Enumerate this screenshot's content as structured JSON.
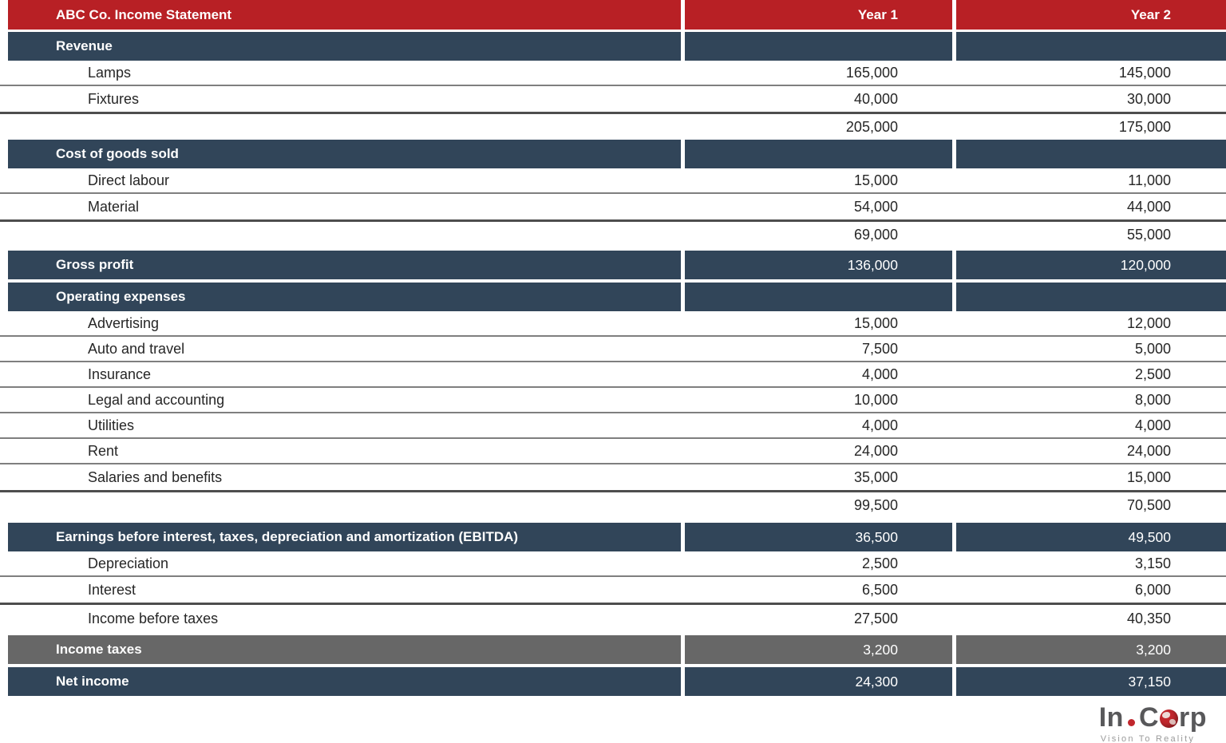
{
  "header": {
    "title": "ABC Co. Income Statement",
    "year1_label": "Year 1",
    "year2_label": "Year 2"
  },
  "rows": [
    {
      "name": "columns-header",
      "type": "header",
      "label": "ABC Co. Income Statement",
      "y1": "Year 1",
      "y2": "Year 2"
    },
    {
      "name": "section-revenue",
      "type": "section",
      "label": "Revenue",
      "gap_before": 3
    },
    {
      "name": "row-lamps",
      "type": "detail",
      "label": "Lamps",
      "y1": "165,000",
      "y2": "145,000",
      "line": "thin"
    },
    {
      "name": "row-fixtures",
      "type": "detail",
      "label": "Fixtures",
      "y1": "40,000",
      "y2": "30,000",
      "line": "thick"
    },
    {
      "name": "row-revenue-total",
      "type": "subtotal",
      "label": "",
      "y1": "205,000",
      "y2": "175,000"
    },
    {
      "name": "section-cost-of-goods-sold",
      "type": "section",
      "label": "Cost of goods sold"
    },
    {
      "name": "row-direct-labour",
      "type": "detail",
      "label": "Direct labour",
      "y1": "15,000",
      "y2": "11,000",
      "line": "thin"
    },
    {
      "name": "row-material",
      "type": "detail",
      "label": "Material",
      "y1": "54,000",
      "y2": "44,000",
      "line": "thick"
    },
    {
      "name": "row-cogs-total",
      "type": "subtotal",
      "label": "",
      "y1": "69,000",
      "y2": "55,000"
    },
    {
      "name": "section-gross-profit",
      "type": "section_values",
      "label": "Gross profit",
      "y1": "136,000",
      "y2": "120,000",
      "gap_before": 4
    },
    {
      "name": "section-operating-expenses",
      "type": "section",
      "label": "Operating expenses",
      "gap_before": 4
    },
    {
      "name": "row-advertising",
      "type": "detail",
      "label": "Advertising",
      "y1": "15,000",
      "y2": "12,000",
      "line": "thin"
    },
    {
      "name": "row-auto-and-travel",
      "type": "detail",
      "label": "Auto and travel",
      "y1": "7,500",
      "y2": "5,000",
      "line": "thin"
    },
    {
      "name": "row-insurance",
      "type": "detail",
      "label": "Insurance",
      "y1": "4,000",
      "y2": "2,500",
      "line": "thin"
    },
    {
      "name": "row-legal-and-accounting",
      "type": "detail",
      "label": "Legal and accounting",
      "y1": "10,000",
      "y2": "8,000",
      "line": "thin"
    },
    {
      "name": "row-utilities",
      "type": "detail",
      "label": "Utilities",
      "y1": "4,000",
      "y2": "4,000",
      "line": "thin"
    },
    {
      "name": "row-rent",
      "type": "detail",
      "label": "Rent",
      "y1": "24,000",
      "y2": "24,000",
      "line": "thin"
    },
    {
      "name": "row-salaries-and-benefits",
      "type": "detail",
      "label": "Salaries and benefits",
      "y1": "35,000",
      "y2": "15,000",
      "line": "thick"
    },
    {
      "name": "row-opex-total",
      "type": "subtotal",
      "label": "",
      "y1": "99,500",
      "y2": "70,500"
    },
    {
      "name": "section-ebitda",
      "type": "section_values",
      "label": "Earnings before interest, taxes, depreciation and amortization (EBITDA)",
      "y1": "36,500",
      "y2": "49,500",
      "gap_before": 6
    },
    {
      "name": "row-depreciation",
      "type": "detail",
      "label": "Depreciation",
      "y1": "2,500",
      "y2": "3,150",
      "line": "thin"
    },
    {
      "name": "row-interest",
      "type": "detail",
      "label": "Interest",
      "y1": "6,500",
      "y2": "6,000",
      "line": "thick"
    },
    {
      "name": "row-income-before-taxes",
      "type": "detail",
      "label": "Income before taxes",
      "y1": "27,500",
      "y2": "40,350",
      "line": "none"
    },
    {
      "name": "section-income-taxes",
      "type": "section_gray",
      "label": "Income taxes",
      "y1": "3,200",
      "y2": "3,200",
      "gap_before": 3
    },
    {
      "name": "section-net-income",
      "type": "section_values",
      "label": "Net income",
      "y1": "24,300",
      "y2": "37,150",
      "gap_before": 4
    }
  ],
  "logo": {
    "part1": "In",
    "part2": "C",
    "part3": "rp",
    "tagline": "Vision To Reality"
  },
  "colors": {
    "header_red": "#b82025",
    "section_blue": "#314559",
    "tax_gray": "#676767",
    "thin_line": "#7f7f7f",
    "thick_line": "#4d4d4d",
    "text_ink": "#262626",
    "logo_gray": "#58585a",
    "logo_red": "#c1272d",
    "tagline_gray": "#9b9b9b"
  }
}
